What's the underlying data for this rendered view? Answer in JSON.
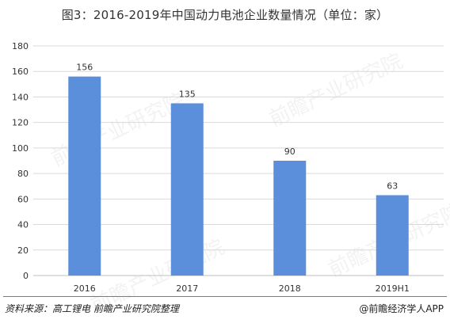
{
  "title": "图3：2016-2019年中国动力电池企业数量情况（单位：家）",
  "watermark_text": "前瞻产业研究院",
  "source": "资料来源：高工锂电  前瞻产业研究院整理",
  "brand": {
    "text": "@前瞻经济学人APP",
    "icon": "camera-logo-icon"
  },
  "colors": {
    "bar": "#5b8fdc",
    "grid": "#d9d9d9",
    "axis": "#bfbfbf",
    "text": "#333333"
  },
  "chart_data": {
    "type": "bar",
    "title": "图3：2016-2019年中国动力电池企业数量情况（单位：家）",
    "categories": [
      "2016",
      "2017",
      "2018",
      "2019H1"
    ],
    "series": [
      {
        "values": [
          156,
          135,
          90,
          63
        ]
      }
    ],
    "ylim": [
      0,
      180
    ],
    "yticks": [
      0,
      20,
      40,
      60,
      80,
      100,
      120,
      140,
      160,
      180
    ],
    "grid": true,
    "legend": "none",
    "data_labels": true
  }
}
